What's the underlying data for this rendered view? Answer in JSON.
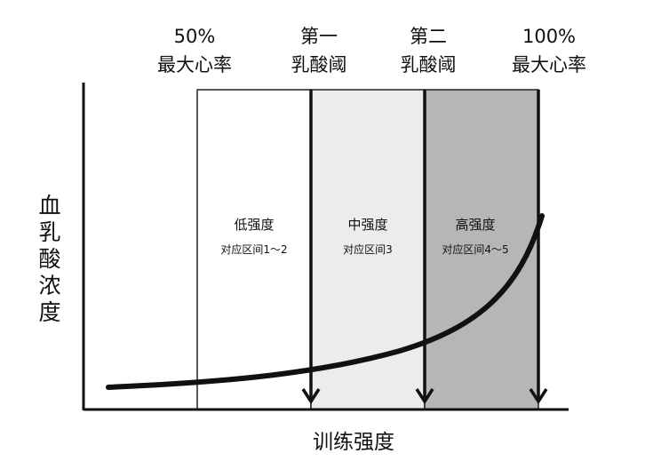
{
  "threshold_labels": {
    "hr50": {
      "line1": "50%",
      "line2": "最大心率"
    },
    "lt1": {
      "line1": "第一",
      "line2": "乳酸阈"
    },
    "lt2": {
      "line1": "第二",
      "line2": "乳酸阈"
    },
    "hr100": {
      "line1": "100%",
      "line2": "最大心率"
    }
  },
  "zones": [
    {
      "name": "低强度",
      "sub": "对应区间1～2",
      "fill": "#ffffff"
    },
    {
      "name": "中强度",
      "sub": "对应区间3",
      "fill": "#ececec"
    },
    {
      "name": "高强度",
      "sub": "对应区间4～5",
      "fill": "#b6b6b6"
    }
  ],
  "axes": {
    "x_label": "训练强度",
    "y_label": [
      "血",
      "乳",
      "酸",
      "浓",
      "度"
    ]
  },
  "colors": {
    "ink": "#111111",
    "zone_border": "#222222",
    "arrow": "#111111"
  }
}
